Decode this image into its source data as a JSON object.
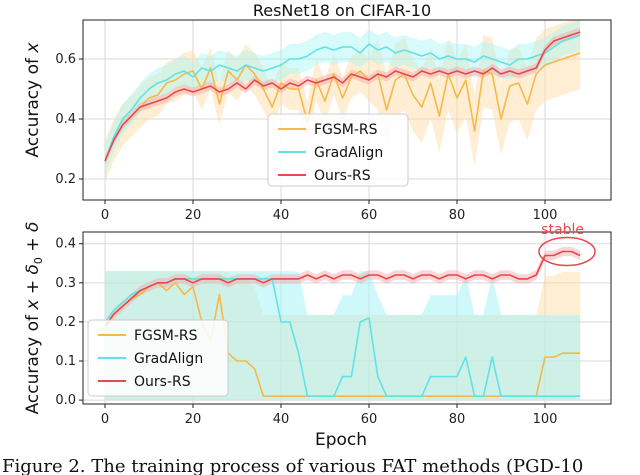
{
  "chart_data": [
    {
      "type": "line",
      "title": "ResNet18 on CIFAR-10",
      "xlabel": "",
      "ylabel": "Accuracy of x",
      "xlim": [
        -5,
        115
      ],
      "ylim": [
        0.13,
        0.73
      ],
      "xticks": [
        0,
        20,
        40,
        60,
        80,
        100
      ],
      "yticks": [
        0.2,
        0.4,
        0.6
      ],
      "grid": true,
      "legend": "lower-center",
      "series": [
        {
          "name": "FGSM-RS",
          "color": "#f5b94a",
          "band": "#ffd9a0",
          "x": [
            0,
            2,
            4,
            6,
            8,
            10,
            12,
            14,
            16,
            18,
            20,
            22,
            24,
            26,
            28,
            30,
            32,
            34,
            36,
            38,
            40,
            42,
            44,
            46,
            48,
            50,
            52,
            54,
            56,
            58,
            60,
            62,
            64,
            66,
            68,
            70,
            72,
            74,
            76,
            78,
            80,
            82,
            84,
            86,
            88,
            90,
            92,
            94,
            96,
            98,
            100,
            102,
            104,
            106,
            108
          ],
          "values": [
            0.26,
            0.33,
            0.38,
            0.41,
            0.44,
            0.47,
            0.48,
            0.52,
            0.53,
            0.55,
            0.56,
            0.5,
            0.57,
            0.45,
            0.56,
            0.53,
            0.58,
            0.55,
            0.5,
            0.44,
            0.52,
            0.5,
            0.5,
            0.39,
            0.53,
            0.46,
            0.55,
            0.47,
            0.54,
            0.56,
            0.53,
            0.55,
            0.43,
            0.53,
            0.55,
            0.48,
            0.44,
            0.52,
            0.41,
            0.55,
            0.47,
            0.53,
            0.36,
            0.56,
            0.55,
            0.4,
            0.51,
            0.52,
            0.45,
            0.55,
            0.58,
            0.59,
            0.6,
            0.61,
            0.62
          ]
        },
        {
          "name": "GradAlign",
          "color": "#5fe3e8",
          "band": "#a6f3f5",
          "x": [
            0,
            2,
            4,
            6,
            8,
            10,
            12,
            14,
            16,
            18,
            20,
            22,
            24,
            26,
            28,
            30,
            32,
            34,
            36,
            38,
            40,
            42,
            44,
            46,
            48,
            50,
            52,
            54,
            56,
            58,
            60,
            62,
            64,
            66,
            68,
            70,
            72,
            74,
            76,
            78,
            80,
            82,
            84,
            86,
            88,
            90,
            92,
            94,
            96,
            98,
            100,
            102,
            104,
            106,
            108
          ],
          "values": [
            0.26,
            0.34,
            0.4,
            0.43,
            0.47,
            0.5,
            0.52,
            0.53,
            0.55,
            0.56,
            0.54,
            0.57,
            0.56,
            0.58,
            0.57,
            0.56,
            0.58,
            0.57,
            0.56,
            0.57,
            0.58,
            0.6,
            0.6,
            0.61,
            0.63,
            0.64,
            0.63,
            0.64,
            0.64,
            0.62,
            0.65,
            0.63,
            0.64,
            0.62,
            0.63,
            0.62,
            0.61,
            0.62,
            0.6,
            0.61,
            0.6,
            0.6,
            0.59,
            0.61,
            0.6,
            0.59,
            0.58,
            0.6,
            0.6,
            0.61,
            0.62,
            0.64,
            0.66,
            0.67,
            0.68
          ]
        },
        {
          "name": "Ours-RS",
          "color": "#e8474d",
          "band": "#f4a6a6",
          "x": [
            0,
            2,
            4,
            6,
            8,
            10,
            12,
            14,
            16,
            18,
            20,
            22,
            24,
            26,
            28,
            30,
            32,
            34,
            36,
            38,
            40,
            42,
            44,
            46,
            48,
            50,
            52,
            54,
            56,
            58,
            60,
            62,
            64,
            66,
            68,
            70,
            72,
            74,
            76,
            78,
            80,
            82,
            84,
            86,
            88,
            90,
            92,
            94,
            96,
            98,
            100,
            102,
            104,
            106,
            108
          ],
          "values": [
            0.26,
            0.33,
            0.38,
            0.41,
            0.44,
            0.45,
            0.46,
            0.47,
            0.49,
            0.5,
            0.49,
            0.5,
            0.51,
            0.49,
            0.5,
            0.52,
            0.5,
            0.53,
            0.51,
            0.52,
            0.5,
            0.52,
            0.51,
            0.53,
            0.52,
            0.53,
            0.54,
            0.52,
            0.55,
            0.54,
            0.53,
            0.55,
            0.54,
            0.56,
            0.55,
            0.54,
            0.56,
            0.55,
            0.56,
            0.55,
            0.56,
            0.55,
            0.56,
            0.55,
            0.57,
            0.55,
            0.56,
            0.55,
            0.56,
            0.57,
            0.63,
            0.66,
            0.67,
            0.68,
            0.69
          ]
        }
      ]
    },
    {
      "type": "line",
      "title": "",
      "xlabel": "Epoch",
      "ylabel": "Accuracy of x + δ0 + δ",
      "xlim": [
        -5,
        115
      ],
      "ylim": [
        -0.01,
        0.43
      ],
      "xticks": [
        0,
        20,
        40,
        60,
        80,
        100
      ],
      "yticks": [
        0.0,
        0.1,
        0.2,
        0.3,
        0.4
      ],
      "grid": true,
      "legend": "lower-left",
      "annotation": "stable",
      "series": [
        {
          "name": "FGSM-RS",
          "color": "#f5b94a",
          "band": "#ffd9a0",
          "x": [
            0,
            2,
            4,
            6,
            8,
            10,
            12,
            14,
            16,
            18,
            20,
            22,
            24,
            26,
            28,
            30,
            32,
            34,
            36,
            38,
            40,
            42,
            44,
            46,
            48,
            50,
            52,
            54,
            56,
            58,
            60,
            62,
            64,
            66,
            68,
            70,
            72,
            74,
            76,
            78,
            80,
            82,
            84,
            86,
            88,
            90,
            92,
            94,
            96,
            98,
            100,
            102,
            104,
            106,
            108
          ],
          "values": [
            0.18,
            0.22,
            0.24,
            0.26,
            0.27,
            0.29,
            0.3,
            0.28,
            0.3,
            0.27,
            0.29,
            0.2,
            0.15,
            0.27,
            0.12,
            0.1,
            0.1,
            0.08,
            0.01,
            0.01,
            0.01,
            0.01,
            0.01,
            0.01,
            0.01,
            0.01,
            0.01,
            0.01,
            0.01,
            0.01,
            0.01,
            0.01,
            0.01,
            0.01,
            0.01,
            0.01,
            0.01,
            0.01,
            0.01,
            0.01,
            0.01,
            0.01,
            0.01,
            0.01,
            0.01,
            0.01,
            0.01,
            0.01,
            0.01,
            0.01,
            0.11,
            0.11,
            0.12,
            0.12,
            0.12
          ]
        },
        {
          "name": "GradAlign",
          "color": "#5fe3e8",
          "band": "#a6f3f5",
          "x": [
            0,
            2,
            4,
            6,
            8,
            10,
            12,
            14,
            16,
            18,
            20,
            22,
            24,
            26,
            28,
            30,
            32,
            34,
            36,
            38,
            40,
            42,
            44,
            46,
            48,
            50,
            52,
            54,
            56,
            58,
            60,
            62,
            64,
            66,
            68,
            70,
            72,
            74,
            76,
            78,
            80,
            82,
            84,
            86,
            88,
            90,
            92,
            94,
            96,
            98,
            100,
            102,
            104,
            106,
            108
          ],
          "values": [
            0.2,
            0.23,
            0.25,
            0.27,
            0.28,
            0.29,
            0.3,
            0.3,
            0.31,
            0.31,
            0.31,
            0.31,
            0.31,
            0.31,
            0.31,
            0.31,
            0.31,
            0.31,
            0.31,
            0.31,
            0.2,
            0.2,
            0.12,
            0.01,
            0.01,
            0.01,
            0.01,
            0.06,
            0.06,
            0.2,
            0.21,
            0.06,
            0.01,
            0.01,
            0.01,
            0.01,
            0.01,
            0.06,
            0.06,
            0.06,
            0.06,
            0.11,
            0.01,
            0.01,
            0.11,
            0.01,
            0.01,
            0.01,
            0.01,
            0.01,
            0.01,
            0.01,
            0.01,
            0.01,
            0.01
          ]
        },
        {
          "name": "Ours-RS",
          "color": "#e8474d",
          "band": "#f4a6a6",
          "x": [
            0,
            2,
            4,
            6,
            8,
            10,
            12,
            14,
            16,
            18,
            20,
            22,
            24,
            26,
            28,
            30,
            32,
            34,
            36,
            38,
            40,
            42,
            44,
            46,
            48,
            50,
            52,
            54,
            56,
            58,
            60,
            62,
            64,
            66,
            68,
            70,
            72,
            74,
            76,
            78,
            80,
            82,
            84,
            86,
            88,
            90,
            92,
            94,
            96,
            98,
            100,
            102,
            104,
            106,
            108
          ],
          "values": [
            0.19,
            0.22,
            0.24,
            0.26,
            0.28,
            0.29,
            0.3,
            0.3,
            0.31,
            0.31,
            0.3,
            0.31,
            0.31,
            0.31,
            0.3,
            0.31,
            0.31,
            0.31,
            0.3,
            0.31,
            0.31,
            0.31,
            0.31,
            0.32,
            0.31,
            0.32,
            0.31,
            0.32,
            0.32,
            0.31,
            0.32,
            0.32,
            0.31,
            0.32,
            0.32,
            0.31,
            0.32,
            0.32,
            0.31,
            0.32,
            0.32,
            0.31,
            0.32,
            0.32,
            0.31,
            0.32,
            0.32,
            0.31,
            0.31,
            0.32,
            0.37,
            0.37,
            0.38,
            0.38,
            0.37
          ]
        }
      ]
    }
  ],
  "caption": "Figure 2.  The training process of various FAT methods (PGD-10"
}
